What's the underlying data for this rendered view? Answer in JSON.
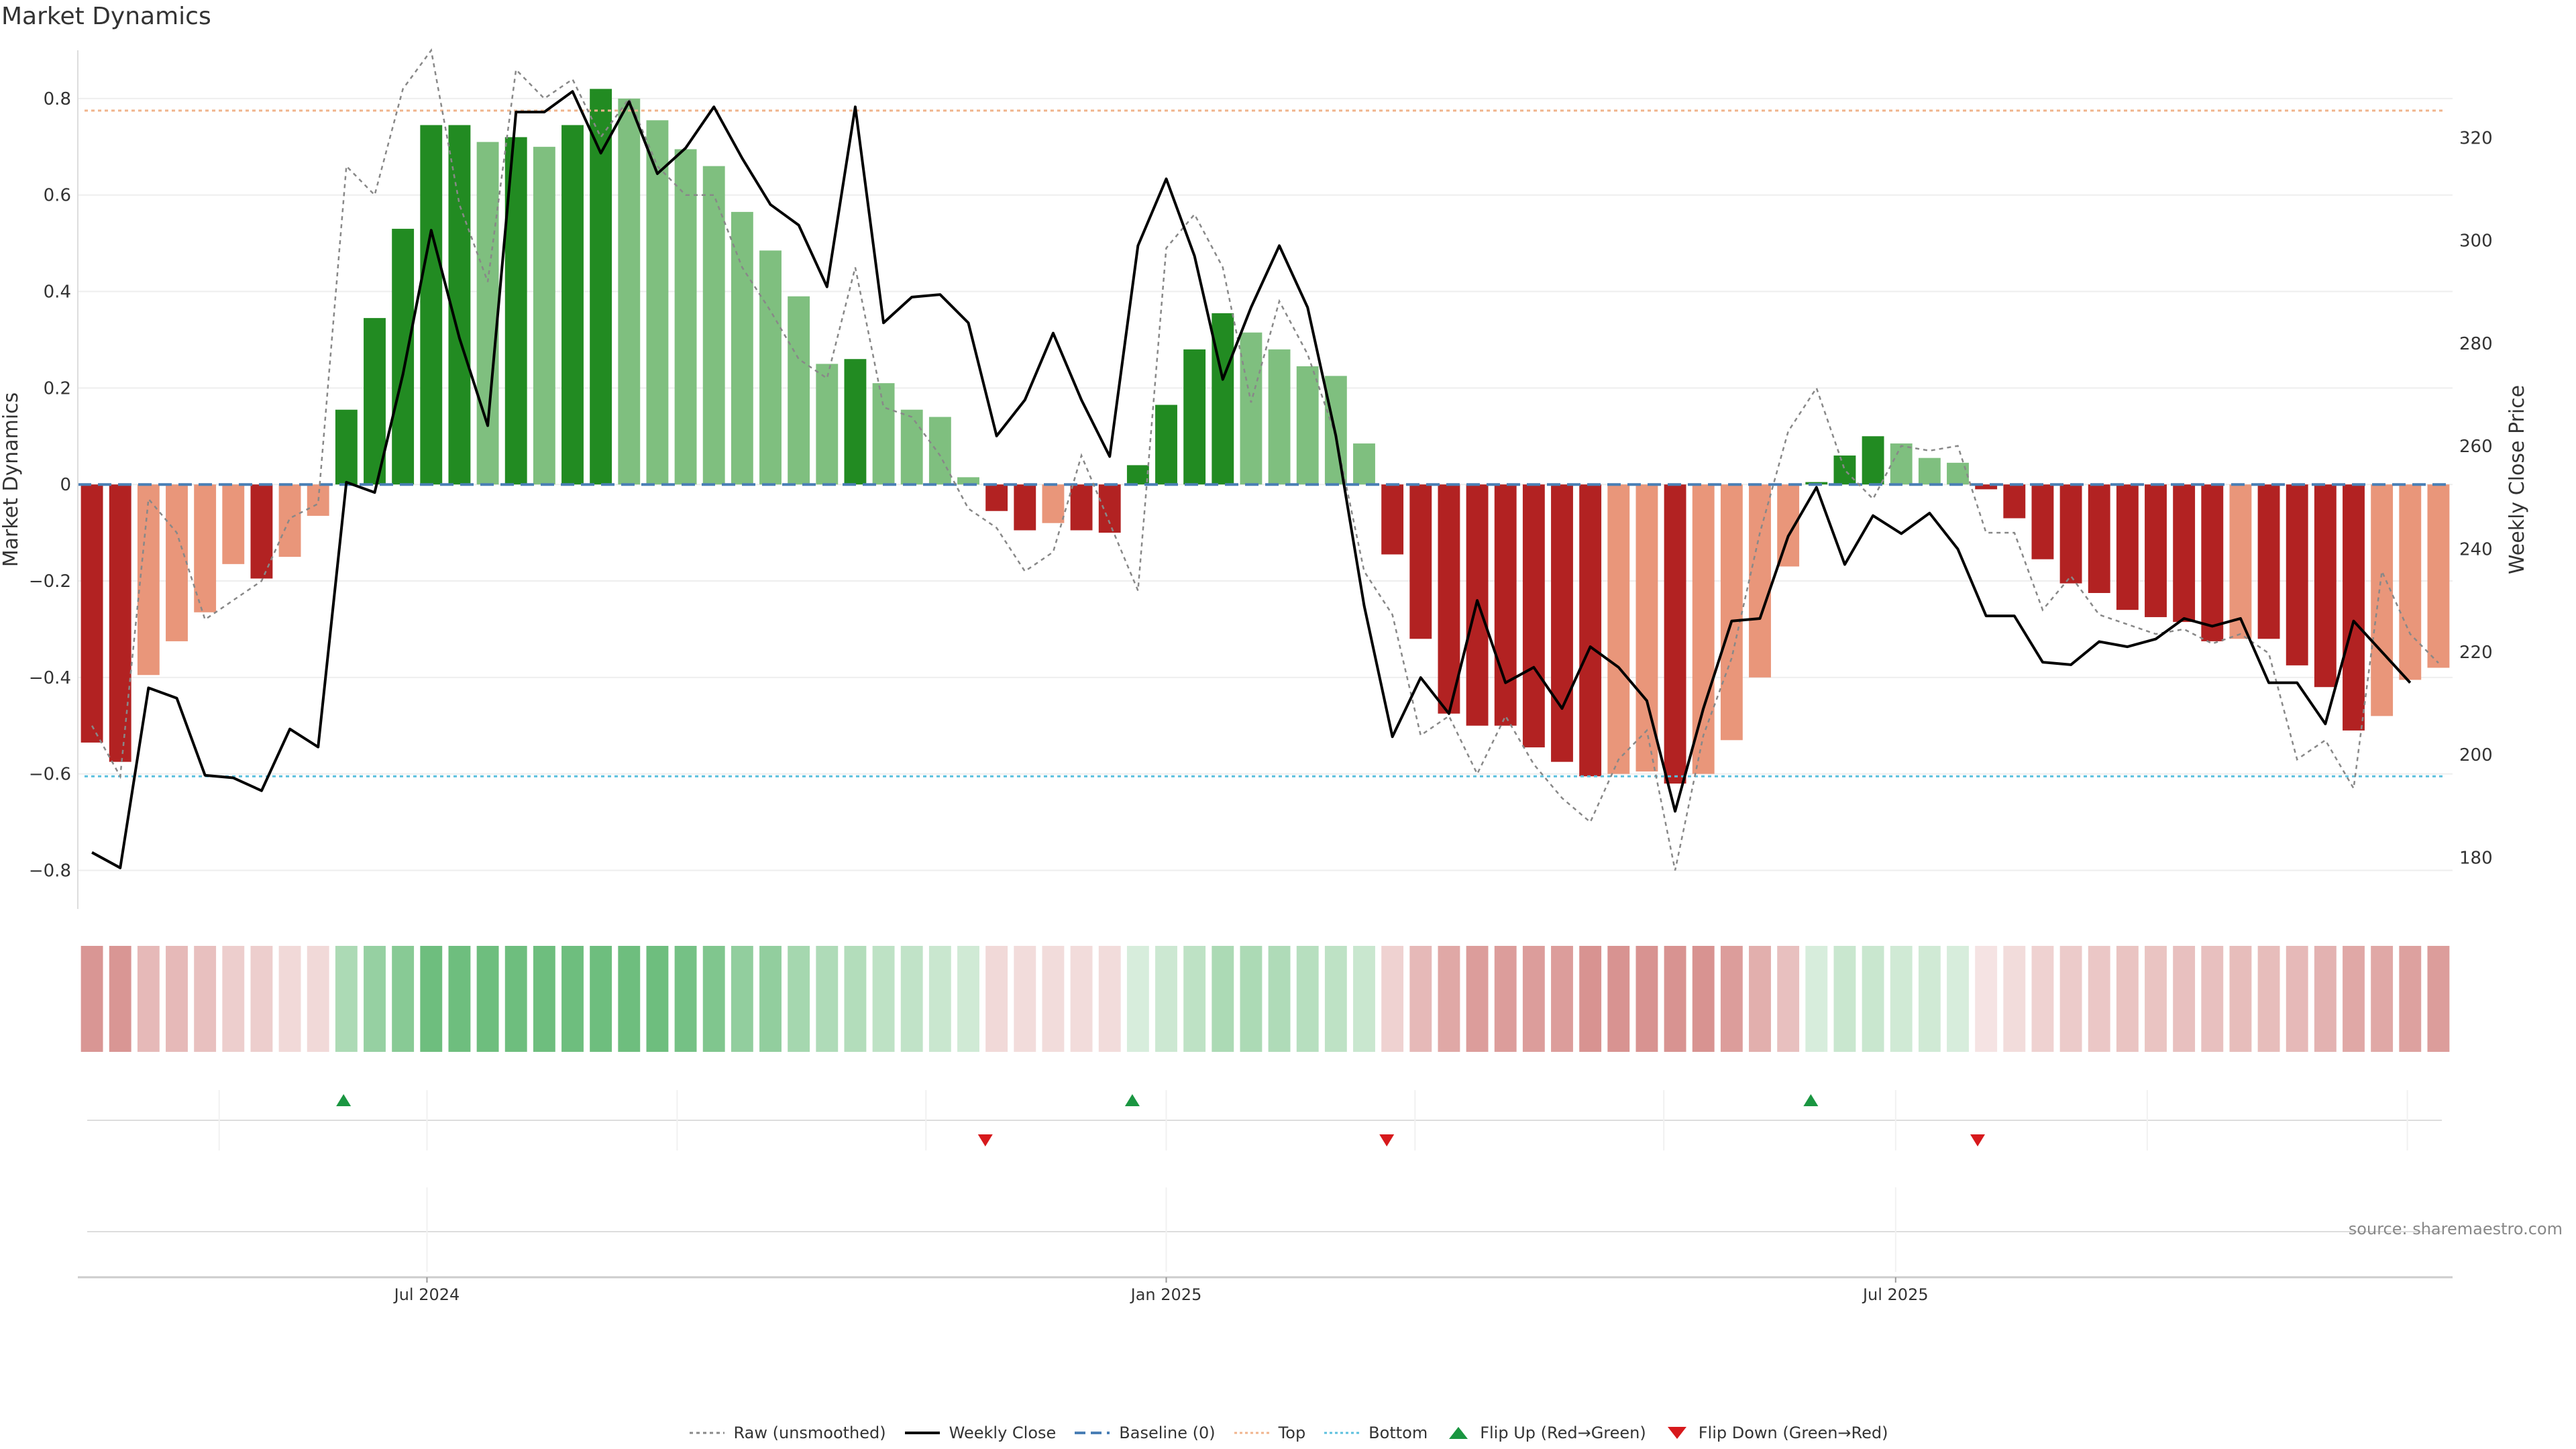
{
  "title": "Market Dynamics",
  "source": "source: sharemaestro.com",
  "colors": {
    "strong_green": "#228b22",
    "light_green": "#7fbf7f",
    "strong_red": "#b22222",
    "light_red": "#e9967a",
    "close_line": "#000000",
    "raw_line": "#888888",
    "baseline": "#4a7fb5",
    "top_line": "#f0b48c",
    "bottom_line": "#5bc0de",
    "flip_up": "#1a9641",
    "flip_down": "#d7191c"
  },
  "legend": {
    "raw": "Raw (unsmoothed)",
    "close": "Weekly Close",
    "baseline": "Baseline (0)",
    "top": "Top",
    "bottom": "Bottom",
    "flip_up": "Flip Up (Red→Green)",
    "flip_down": "Flip Down (Green→Red)"
  },
  "chart_data": {
    "type": "bar",
    "title": "Market Dynamics",
    "xlabel": "",
    "ylabel": "Market Dynamics",
    "y2label": "Weekly Close Price",
    "ylim": [
      -0.88,
      0.9
    ],
    "y2lim": [
      170,
      337
    ],
    "yticks": [
      0.8,
      0.6,
      0.4,
      0.2,
      0,
      -0.2,
      -0.4,
      -0.6,
      -0.8
    ],
    "ytick_labels": [
      "0.8",
      "0.6",
      "0.4",
      "0.2",
      "0",
      "−0.2",
      "−0.4",
      "−0.6",
      "−0.8"
    ],
    "y2ticks": [
      320,
      300,
      280,
      260,
      240,
      220,
      200,
      180
    ],
    "xtick_labels": [
      "Jul 2024",
      "Jan 2025",
      "Jul 2025"
    ],
    "xtick_weeks": [
      12.35,
      38.5,
      64.3
    ],
    "top_level": 0.775,
    "bottom_level": -0.605,
    "baseline": 0,
    "series": [
      {
        "name": "Market Dynamics",
        "values": [
          -0.535,
          -0.575,
          -0.395,
          -0.325,
          -0.265,
          -0.165,
          -0.195,
          -0.15,
          -0.065,
          0.155,
          0.345,
          0.53,
          0.745,
          0.745,
          0.71,
          0.72,
          0.7,
          0.745,
          0.82,
          0.8,
          0.755,
          0.695,
          0.66,
          0.565,
          0.485,
          0.39,
          0.25,
          0.26,
          0.21,
          0.155,
          0.14,
          0.015,
          -0.055,
          -0.095,
          -0.08,
          -0.095,
          -0.1,
          0.04,
          0.165,
          0.28,
          0.355,
          0.315,
          0.28,
          0.245,
          0.225,
          0.085,
          -0.145,
          -0.32,
          -0.475,
          -0.5,
          -0.5,
          -0.545,
          -0.575,
          -0.605,
          -0.6,
          -0.595,
          -0.62,
          -0.6,
          -0.53,
          -0.4,
          -0.17,
          0.005,
          0.06,
          0.1,
          0.085,
          0.055,
          0.045,
          -0.01,
          -0.07,
          -0.155,
          -0.205,
          -0.225,
          -0.26,
          -0.275,
          -0.285,
          -0.325,
          -0.32,
          -0.32,
          -0.375,
          -0.42,
          -0.51,
          -0.48,
          -0.405,
          -0.38
        ]
      },
      {
        "name": "Raw (unsmoothed)",
        "values": [
          -0.5,
          -0.605,
          -0.03,
          -0.1,
          -0.28,
          -0.24,
          -0.2,
          -0.07,
          -0.04,
          0.66,
          0.6,
          0.82,
          0.9,
          0.58,
          0.42,
          0.86,
          0.8,
          0.84,
          0.72,
          0.8,
          0.66,
          0.6,
          0.6,
          0.45,
          0.36,
          0.26,
          0.22,
          0.45,
          0.16,
          0.14,
          0.06,
          -0.05,
          -0.09,
          -0.18,
          -0.14,
          0.06,
          -0.08,
          -0.22,
          0.49,
          0.56,
          0.45,
          0.17,
          0.38,
          0.27,
          0.1,
          -0.18,
          -0.27,
          -0.52,
          -0.48,
          -0.6,
          -0.48,
          -0.58,
          -0.65,
          -0.7,
          -0.57,
          -0.51,
          -0.8,
          -0.52,
          -0.36,
          -0.1,
          0.11,
          0.2,
          0.03,
          -0.03,
          0.08,
          0.07,
          0.08,
          -0.1,
          -0.1,
          -0.26,
          -0.19,
          -0.27,
          -0.29,
          -0.31,
          -0.3,
          -0.33,
          -0.31,
          -0.35,
          -0.57,
          -0.53,
          -0.63,
          -0.18,
          -0.31,
          -0.37
        ]
      },
      {
        "name": "Weekly Close",
        "axis": "right",
        "values": [
          181,
          178,
          213,
          211,
          196,
          195.5,
          193,
          205,
          201.5,
          253,
          251,
          274,
          302,
          281,
          264,
          325,
          325,
          329,
          317,
          327,
          313,
          318,
          326,
          316,
          307,
          303,
          291,
          326,
          284,
          289,
          289.5,
          284,
          262,
          269,
          282,
          269,
          258,
          299,
          312,
          297,
          273,
          287,
          299,
          287,
          262,
          229,
          203.5,
          215,
          208,
          230,
          214,
          217,
          209,
          221,
          217,
          210.5,
          189,
          209,
          226,
          226.5,
          242.5,
          252,
          237,
          246.5,
          243,
          247,
          240,
          227,
          227,
          218,
          217.5,
          222,
          221,
          222.5,
          226.5,
          225,
          226.5,
          214,
          214,
          206,
          226,
          220,
          214
        ]
      },
      {
        "name": "Intensity strip",
        "values": [
          0.6,
          0.6,
          0.4,
          0.4,
          0.36,
          0.28,
          0.28,
          0.22,
          0.22,
          0.46,
          0.58,
          0.66,
          0.8,
          0.8,
          0.8,
          0.8,
          0.8,
          0.8,
          0.8,
          0.8,
          0.8,
          0.76,
          0.7,
          0.6,
          0.6,
          0.5,
          0.44,
          0.42,
          0.36,
          0.34,
          0.3,
          0.26,
          0.22,
          0.2,
          0.2,
          0.2,
          0.2,
          0.22,
          0.28,
          0.36,
          0.46,
          0.46,
          0.44,
          0.4,
          0.36,
          0.3,
          0.26,
          0.4,
          0.5,
          0.56,
          0.56,
          0.56,
          0.56,
          0.62,
          0.62,
          0.62,
          0.62,
          0.62,
          0.56,
          0.46,
          0.36,
          0.22,
          0.3,
          0.3,
          0.26,
          0.26,
          0.22,
          0.16,
          0.2,
          0.26,
          0.3,
          0.32,
          0.34,
          0.34,
          0.36,
          0.36,
          0.38,
          0.38,
          0.4,
          0.44,
          0.5,
          0.5,
          0.54,
          0.56
        ]
      }
    ],
    "flips": [
      {
        "type": "up",
        "week": 9.4
      },
      {
        "type": "down",
        "week": 32.1
      },
      {
        "type": "up",
        "week": 37.3
      },
      {
        "type": "down",
        "week": 46.3
      },
      {
        "type": "up",
        "week": 61.3
      },
      {
        "type": "down",
        "week": 67.2
      }
    ]
  }
}
